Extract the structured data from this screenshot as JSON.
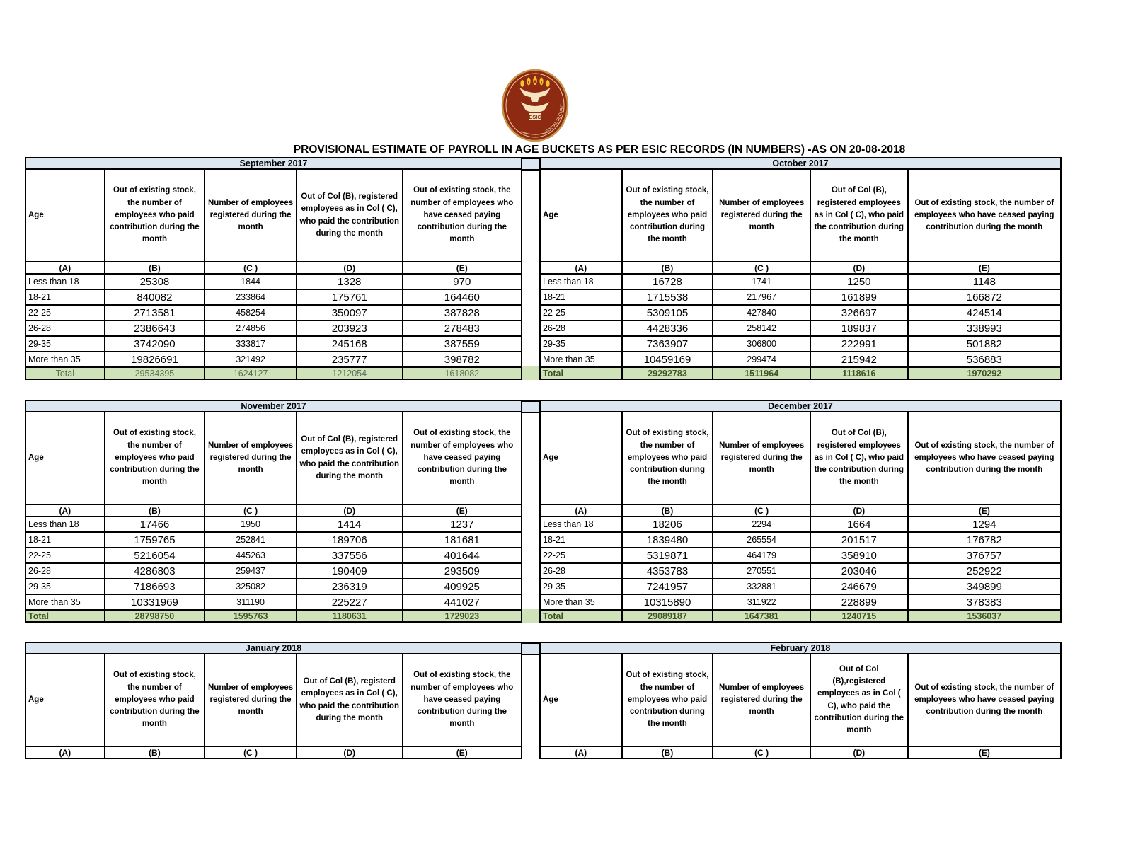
{
  "page_title": "PROVISIONAL ESTIMATE OF PAYROLL IN AGE BUCKETS AS PER ESIC RECORDS (IN NUMBERS) -AS ON 20-08-2018",
  "logo": {
    "text": "ESIC",
    "ring_text": "SOCIAL SECURITY"
  },
  "colors": {
    "month_band": "#dce6f1",
    "total_band": "#cfe2ba",
    "total_text": "#3f5426",
    "total_text_sep": "#5f6e55",
    "logo_maroon": "#8e2912",
    "logo_gold": "#e8b13d"
  },
  "column_letters": [
    "(A)",
    "(B)",
    "(C )",
    "(D)",
    "(E)"
  ],
  "tables": [
    {
      "id": "sep2017",
      "month": "September 2017",
      "side": "left",
      "headers": [
        "Age",
        "Out of existing stock, the number of employees who paid contribution during the month",
        "Number of employees registered during the month",
        "Out of Col (B), registered employees as in Col ( C), who paid the contribution during the month",
        "Out of existing stock, the number of  employees  who have ceased paying contribution during the month"
      ],
      "rows": [
        [
          "Less than 18",
          "25308",
          "1844",
          "1328",
          "970"
        ],
        [
          "18-21",
          "840082",
          "233864",
          "175761",
          "164460"
        ],
        [
          "22-25",
          "2713581",
          "458254",
          "350097",
          "387828"
        ],
        [
          "26-28",
          "2386643",
          "274856",
          "203923",
          "278483"
        ],
        [
          "29-35",
          "3742090",
          "333817",
          "245168",
          "387559"
        ],
        [
          "More than 35",
          "19826691",
          "321492",
          "235777",
          "398782"
        ]
      ],
      "total": {
        "label": "Total",
        "values": [
          "29534395",
          "1624127",
          "1212054",
          "1618082"
        ],
        "align": "center"
      }
    },
    {
      "id": "oct2017",
      "month": "October 2017",
      "side": "right",
      "headers": [
        "Age",
        "Out of existing stock, the number of employees who paid contribution during the month",
        "Number of employees registered during the month",
        "Out of Col (B), registered employees as in Col ( C), who paid the contribution during the month",
        "Out of existing stock, the number of  employees  who have ceased paying contribution during the month"
      ],
      "rows": [
        [
          "Less than 18",
          "16728",
          "1741",
          "1250",
          "1148"
        ],
        [
          "18-21",
          "1715538",
          "217967",
          "161899",
          "166872"
        ],
        [
          "22-25",
          "5309105",
          "427840",
          "326697",
          "424514"
        ],
        [
          "26-28",
          "4428336",
          "258142",
          "189837",
          "338993"
        ],
        [
          "29-35",
          "7363907",
          "306800",
          "222991",
          "501882"
        ],
        [
          "More than 35",
          "10459169",
          "299474",
          "215942",
          "536883"
        ]
      ],
      "total": {
        "label": "Total",
        "values": [
          "29292783",
          "1511964",
          "1118616",
          "1970292"
        ],
        "align": "left"
      }
    },
    {
      "id": "nov2017",
      "month": "November 2017",
      "side": "left",
      "headers": [
        "Age",
        "Out of existing stock, the number of employees who paid contribution during the month",
        "Number of employees registered during the month",
        "Out of Col (B), registered employees as in Col ( C), who paid the contribution during the month",
        "Out of existing stock, the number of  employees  who have ceased paying contribution during the month"
      ],
      "rows": [
        [
          "Less than 18",
          "17466",
          "1950",
          "1414",
          "1237"
        ],
        [
          "18-21",
          "1759765",
          "252841",
          "189706",
          "181681"
        ],
        [
          "22-25",
          "5216054",
          "445263",
          "337556",
          "401644"
        ],
        [
          "26-28",
          "4286803",
          "259437",
          "190409",
          "293509"
        ],
        [
          "29-35",
          "7186693",
          "325082",
          "236319",
          "409925"
        ],
        [
          "More than 35",
          "10331969",
          "311190",
          "225227",
          "441027"
        ]
      ],
      "total": {
        "label": "Total",
        "values": [
          "28798750",
          "1595763",
          "1180631",
          "1729023"
        ],
        "align": "left"
      }
    },
    {
      "id": "dec2017",
      "month": "December 2017",
      "side": "right",
      "headers": [
        "Age",
        "Out of existing stock, the number of employees who paid contribution during the month",
        "Number of employees registered during the month",
        "Out of Col (B), registered employees as in Col ( C), who paid the contribution during the month",
        "Out of existing stock, the number of  employees  who have ceased paying contribution during the month"
      ],
      "rows": [
        [
          "Less than 18",
          "18206",
          "2294",
          "1664",
          "1294"
        ],
        [
          "18-21",
          "1839480",
          "265554",
          "201517",
          "176782"
        ],
        [
          "22-25",
          "5319871",
          "464179",
          "358910",
          "376757"
        ],
        [
          "26-28",
          "4353783",
          "270551",
          "203046",
          "252922"
        ],
        [
          "29-35",
          "7241957",
          "332881",
          "246679",
          "349899"
        ],
        [
          "More than 35",
          "10315890",
          "311922",
          "228899",
          "378383"
        ]
      ],
      "total": {
        "label": "Total",
        "values": [
          "29089187",
          "1647381",
          "1240715",
          "1536037"
        ],
        "align": "left"
      }
    },
    {
      "id": "jan2018",
      "month": "January 2018",
      "side": "left",
      "headers": [
        "Age",
        "Out of existing stock, the number of employees who paid contribution during the month",
        "Number of employees registered during the month",
        "Out of Col (B), registerd employees as in Col ( C), who paid the contribution during the month",
        "Out of existing stock, the number of  employees  who have ceased paying contribution during the month"
      ],
      "rows": [],
      "total": null
    },
    {
      "id": "feb2018",
      "month": "February 2018",
      "side": "right",
      "headers": [
        "Age",
        "Out of existing stock, the number of employees who paid contribution during the month",
        "Number of employees registered during the month",
        "Out of Col (B),registered employees as in Col ( C), who paid the contribution during the month",
        "Out of existing stock, the number of  employees  who have ceased paying contribution during the month"
      ],
      "rows": [],
      "total": null
    }
  ]
}
